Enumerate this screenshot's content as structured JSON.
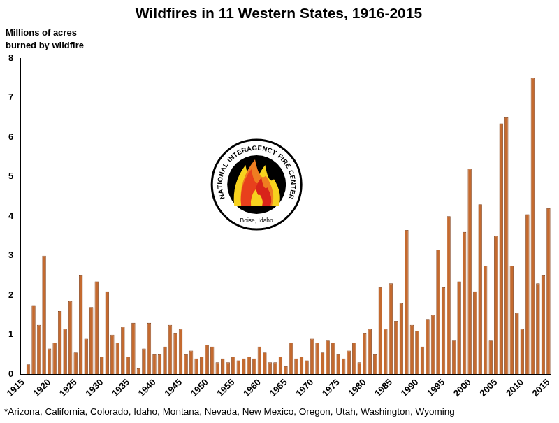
{
  "chart_data": {
    "type": "bar",
    "title": "Wildfires in 11 Western States, 1916-2015",
    "y_label": [
      "Millions of acres",
      "burned by wildfire"
    ],
    "footnote": "*Arizona, California, Colorado, Idaho, Montana, Nevada, New Mexico, Oregon, Utah, Washington, Wyoming",
    "annotations": [
      "NATIONAL INTERAGENCY FIRE CENTER",
      "Boise, Idaho"
    ],
    "categories": [
      "1915",
      null,
      null,
      null,
      null,
      "1920",
      null,
      null,
      null,
      null,
      "1925",
      null,
      null,
      null,
      null,
      "1930",
      null,
      null,
      null,
      null,
      "1935",
      null,
      null,
      null,
      null,
      "1940",
      null,
      null,
      null,
      null,
      "1945",
      null,
      null,
      null,
      null,
      "1950",
      null,
      null,
      null,
      null,
      "1955",
      null,
      null,
      null,
      null,
      "1960",
      null,
      null,
      null,
      null,
      "1965",
      null,
      null,
      null,
      null,
      "1970",
      null,
      null,
      null,
      null,
      "1975",
      null,
      null,
      null,
      null,
      "1980",
      null,
      null,
      null,
      null,
      "1985",
      null,
      null,
      null,
      null,
      "1990",
      null,
      null,
      null,
      null,
      "1995",
      null,
      null,
      null,
      null,
      "2000",
      null,
      null,
      null,
      null,
      "2005",
      null,
      null,
      null,
      null,
      "2010",
      null,
      null,
      null,
      null,
      "2015"
    ],
    "values": [
      null,
      0.25,
      1.75,
      1.25,
      3.0,
      0.65,
      0.8,
      1.6,
      1.15,
      1.85,
      0.55,
      2.5,
      0.9,
      1.7,
      2.35,
      0.45,
      2.1,
      1.0,
      0.8,
      1.2,
      0.45,
      1.3,
      0.15,
      0.65,
      1.3,
      0.5,
      0.5,
      0.7,
      1.25,
      1.05,
      1.15,
      0.5,
      0.6,
      0.4,
      0.45,
      0.75,
      0.7,
      0.3,
      0.4,
      0.3,
      0.45,
      0.35,
      0.4,
      0.45,
      0.4,
      0.7,
      0.55,
      0.3,
      0.3,
      0.45,
      0.2,
      0.8,
      0.4,
      0.45,
      0.35,
      0.9,
      0.8,
      0.55,
      0.85,
      0.8,
      0.5,
      0.4,
      0.6,
      0.8,
      0.3,
      1.05,
      1.15,
      0.5,
      2.2,
      1.15,
      2.3,
      1.35,
      1.8,
      3.65,
      1.25,
      1.1,
      0.7,
      1.4,
      1.5,
      3.15,
      2.2,
      4.0,
      0.85,
      2.35,
      3.6,
      5.2,
      2.1,
      4.3,
      2.75,
      0.85,
      3.5,
      6.35,
      6.5,
      2.75,
      1.55,
      1.15,
      4.05,
      7.5,
      2.3,
      2.5,
      4.2
    ],
    "color": "#c46a2f",
    "ylim": [
      0,
      8
    ],
    "yticks": [
      0,
      1,
      2,
      3,
      4,
      5,
      6,
      7,
      8
    ],
    "grid": false
  }
}
